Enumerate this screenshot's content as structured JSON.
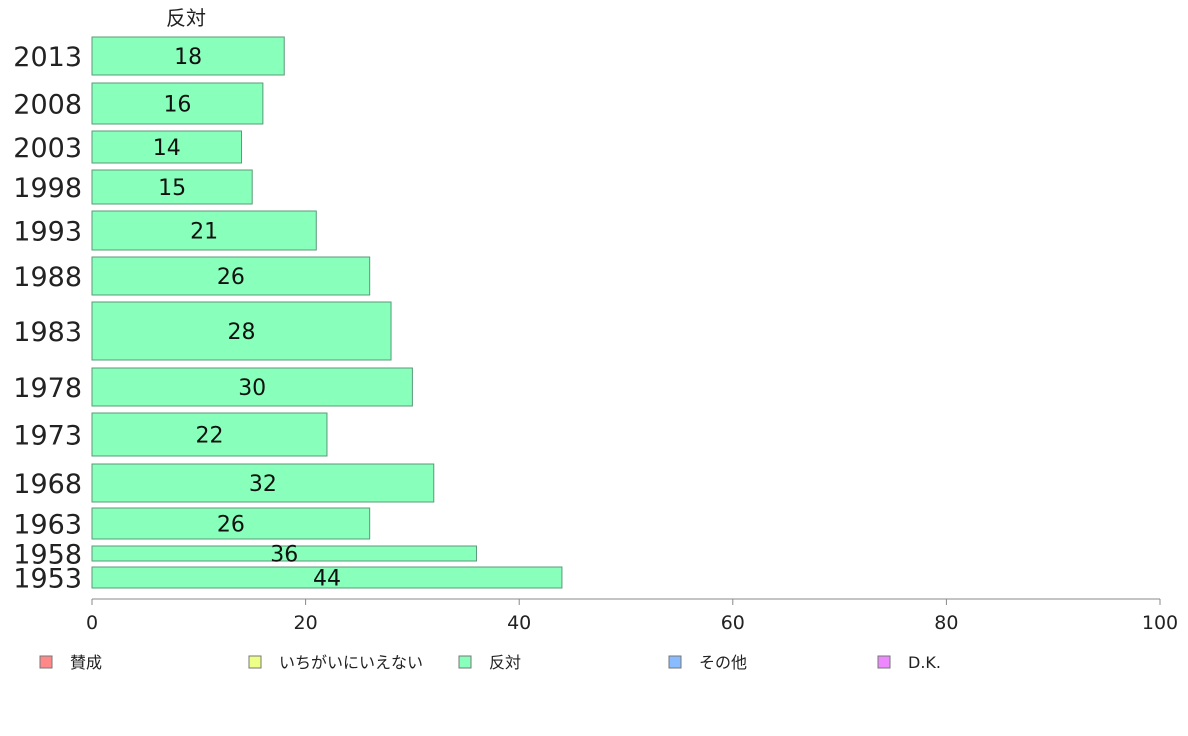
{
  "chart_data": {
    "type": "bar",
    "orientation": "horizontal",
    "series_title": "反対",
    "categories": [
      "2013",
      "2008",
      "2003",
      "1998",
      "1993",
      "1988",
      "1983",
      "1978",
      "1973",
      "1968",
      "1963",
      "1958",
      "1953"
    ],
    "series": [
      {
        "name": "反対",
        "color": "#88ffbb",
        "values": [
          18,
          16,
          14,
          15,
          21,
          26,
          28,
          30,
          22,
          32,
          26,
          36,
          44
        ]
      }
    ],
    "xlim": [
      0,
      100
    ],
    "x_ticks": [
      "0",
      "20",
      "40",
      "60",
      "80",
      "100"
    ],
    "grid": false,
    "legend_position": "bottom",
    "legend": [
      {
        "label": "賛成",
        "color": "#ff8888"
      },
      {
        "label": "いちがいにいえない",
        "color": "#eeff88"
      },
      {
        "label": "反対",
        "color": "#88ffbb"
      },
      {
        "label": "その他",
        "color": "#88bbff"
      },
      {
        "label": "D.K.",
        "color": "#ee88ff"
      }
    ]
  }
}
